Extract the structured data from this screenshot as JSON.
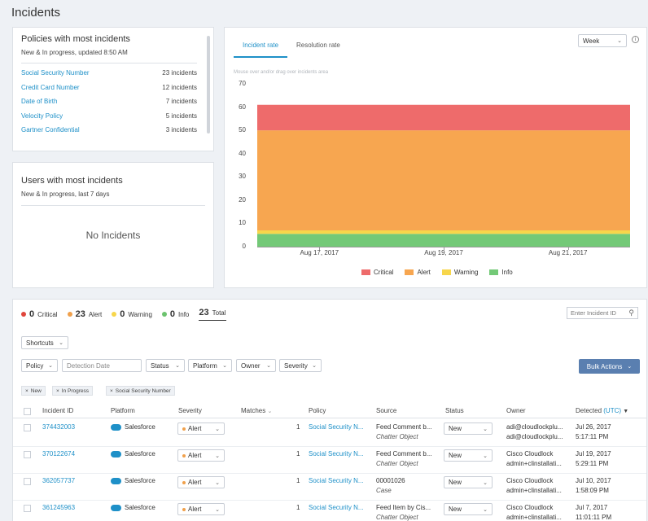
{
  "page": {
    "title": "Incidents"
  },
  "policies": {
    "title": "Policies with most incidents",
    "subtitle": "New & In progress, updated 8:50 AM",
    "items": [
      {
        "name": "Social Security Number",
        "count": "23 incidents"
      },
      {
        "name": "Credit Card Number",
        "count": "12 incidents"
      },
      {
        "name": "Date of Birth",
        "count": "7 incidents"
      },
      {
        "name": "Velocity Policy",
        "count": "5 incidents"
      },
      {
        "name": "Gartner Confidential",
        "count": "3 incidents"
      }
    ]
  },
  "users": {
    "title": "Users with most incidents",
    "subtitle": "New & In progress, last 7 days",
    "empty": "No Incidents"
  },
  "chart_panel": {
    "tabs": [
      "Incident rate",
      "Resolution rate"
    ],
    "period": "Week",
    "info_icon": "info-icon",
    "hint": "Mouse over and/or drag over incidents area"
  },
  "chart_data": {
    "type": "area",
    "stacked": true,
    "x": [
      "Aug 16, 2017",
      "Aug 17, 2017",
      "Aug 18, 2017",
      "Aug 19, 2017",
      "Aug 20, 2017",
      "Aug 21, 2017",
      "Aug 22, 2017"
    ],
    "xticks": [
      "Aug 17, 2017",
      "Aug 19, 2017",
      "Aug 21, 2017"
    ],
    "ylim": [
      0,
      70
    ],
    "yticks": [
      0,
      10,
      20,
      30,
      40,
      50,
      60,
      70
    ],
    "series": [
      {
        "name": "Info",
        "color": "#73c977",
        "values": [
          5.5,
          5.5,
          5.5,
          5.5,
          5.5,
          5.5,
          5.5
        ]
      },
      {
        "name": "Warning",
        "color": "#f7d64b",
        "values": [
          1.5,
          1.5,
          1.5,
          1.5,
          1.5,
          1.5,
          1.5
        ]
      },
      {
        "name": "Alert",
        "color": "#f7a650",
        "values": [
          43,
          43,
          43,
          43,
          43,
          43,
          43
        ]
      },
      {
        "name": "Critical",
        "color": "#ee6b6b",
        "values": [
          11,
          11,
          11,
          11,
          11,
          11,
          11
        ]
      }
    ],
    "legend": [
      "Critical",
      "Alert",
      "Warning",
      "Info"
    ]
  },
  "summary": {
    "critical": {
      "count": "0",
      "label": "Critical",
      "color": "#e0463c"
    },
    "alert": {
      "count": "23",
      "label": "Alert",
      "color": "#f0a04b"
    },
    "warning": {
      "count": "0",
      "label": "Warning",
      "color": "#f7d64b"
    },
    "info": {
      "count": "0",
      "label": "Info",
      "color": "#6cc36e"
    },
    "total": {
      "count": "23",
      "label": "Total"
    }
  },
  "search": {
    "placeholder": "Enter Incident ID"
  },
  "filters": {
    "shortcuts": "Shortcuts",
    "policy": "Policy",
    "detection_date": "Detection Date",
    "status": "Status",
    "platform": "Platform",
    "owner": "Owner",
    "severity": "Severity",
    "bulk_actions": "Bulk Actions"
  },
  "chips": [
    "New",
    "In Progress",
    "Social Security Number"
  ],
  "table": {
    "headers": {
      "id": "Incident ID",
      "platform": "Platform",
      "severity": "Severity",
      "matches": "Matches",
      "policy": "Policy",
      "source": "Source",
      "status": "Status",
      "owner": "Owner",
      "detected": "Detected",
      "utc": "(UTC)"
    },
    "rows": [
      {
        "id": "374432003",
        "platform": "Salesforce",
        "severity": "Alert",
        "matches": "1",
        "policy": "Social Security N...",
        "source": "Feed Comment b...",
        "source_sub": "Chatter Object",
        "status": "New",
        "owner": "adi@cloudlockplu...",
        "owner_sub": "adi@cloudlockplu...",
        "date": "Jul 26, 2017",
        "time": "5:17:11 PM"
      },
      {
        "id": "370122674",
        "platform": "Salesforce",
        "severity": "Alert",
        "matches": "1",
        "policy": "Social Security N...",
        "source": "Feed Comment b...",
        "source_sub": "Chatter Object",
        "status": "New",
        "owner": "Cisco Cloudlock",
        "owner_sub": "admin+clinstallati...",
        "date": "Jul 19, 2017",
        "time": "5:29:11 PM"
      },
      {
        "id": "362057737",
        "platform": "Salesforce",
        "severity": "Alert",
        "matches": "1",
        "policy": "Social Security N...",
        "source": "00001026",
        "source_sub": "Case",
        "status": "New",
        "owner": "Cisco Cloudlock",
        "owner_sub": "admin+clinstallati...",
        "date": "Jul 10, 2017",
        "time": "1:58:09 PM"
      },
      {
        "id": "361245963",
        "platform": "Salesforce",
        "severity": "Alert",
        "matches": "1",
        "policy": "Social Security N...",
        "source": "Feed Item by Cis...",
        "source_sub": "Chatter Object",
        "status": "New",
        "owner": "Cisco Cloudlock",
        "owner_sub": "admin+clinstallati...",
        "date": "Jul 7, 2017",
        "time": "11:01:11 PM"
      }
    ]
  }
}
